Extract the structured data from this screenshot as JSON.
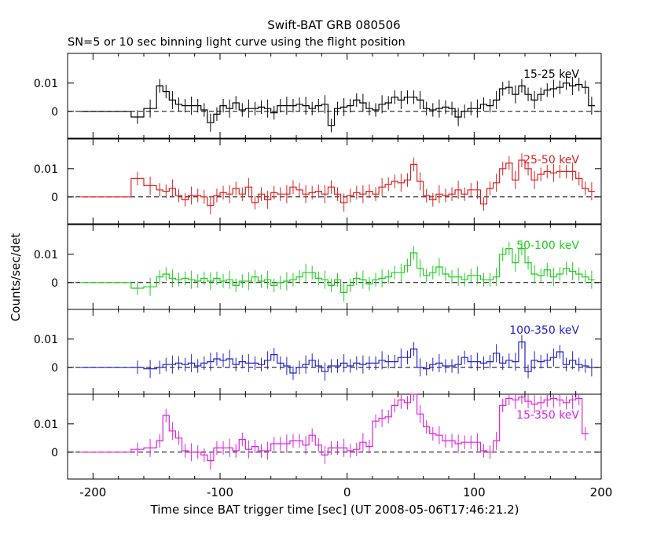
{
  "title": "Swift-BAT GRB 080506",
  "subtitle": "SN=5 or 10 sec binning light curve using the flight position",
  "xlabel": "Time since BAT trigger time [sec] (UT 2008-05-06T17:46:21.2)",
  "ylabel": "Counts/sec/det",
  "chart_data": {
    "type": "line",
    "title": "Swift-BAT GRB 080506",
    "subtitle": "SN=5 or 10 sec binning light curve using the flight position",
    "xlabel": "Time since BAT trigger time [sec] (UT 2008-05-06T17:46:21.2)",
    "ylabel": "Counts/sec/det",
    "xlim": [
      -220,
      200
    ],
    "ylim": [
      -0.0095,
      0.0205
    ],
    "x_ticks": [
      -200,
      -100,
      0,
      100,
      200
    ],
    "y_ticks": [
      0,
      0.01
    ],
    "y_tick_labels": [
      "0",
      "0.01"
    ],
    "grid": false,
    "baseline": 0,
    "x_edges": [
      -210,
      -190,
      -170,
      -160,
      -150,
      -145,
      -140,
      -135,
      -130,
      -125,
      -120,
      -115,
      -110,
      -105,
      -100,
      -95,
      -90,
      -85,
      -80,
      -75,
      -70,
      -65,
      -60,
      -55,
      -50,
      -45,
      -40,
      -35,
      -30,
      -25,
      -20,
      -15,
      -10,
      -5,
      0,
      5,
      10,
      15,
      20,
      25,
      30,
      35,
      40,
      45,
      50,
      55,
      60,
      65,
      70,
      75,
      80,
      85,
      90,
      95,
      100,
      105,
      110,
      115,
      120,
      125,
      130,
      135,
      140,
      145,
      150,
      155,
      160,
      165,
      170,
      175,
      180,
      185,
      190,
      195
    ],
    "series": [
      {
        "name": "15-25 keV",
        "color": "#000000",
        "values": [
          0,
          0,
          -0.002,
          0.001,
          0.009,
          0.007,
          0.004,
          0.0025,
          0.002,
          0.002,
          0.002,
          0.0005,
          -0.004,
          -0.001,
          0.002,
          0.001,
          0.003,
          0.0005,
          0.001,
          0.001,
          0.0015,
          0.001,
          -0.0005,
          0.002,
          0.002,
          0.002,
          0.0025,
          0.002,
          0.001,
          0.002,
          0.0025,
          -0.005,
          0.001,
          0.0015,
          0.002,
          0.004,
          0.003,
          0.001,
          0.0005,
          0.0025,
          0.003,
          0.005,
          0.004,
          0.005,
          0.005,
          0.004,
          0.001,
          0.0005,
          0.001,
          0.0015,
          0.001,
          -0.002,
          0,
          0.001,
          0.001,
          0.0025,
          0.002,
          0.004,
          0.008,
          0.0085,
          0.006,
          0.009,
          0.006,
          0.004,
          0.006,
          0.0075,
          0.008,
          0.0085,
          0.01,
          0.009,
          0.0095,
          0.0085,
          0.002
        ]
      },
      {
        "name": "25-50 keV",
        "color": "#dd2020",
        "values": [
          0,
          0,
          0.0065,
          0.004,
          0.0025,
          0.002,
          0.003,
          0.0005,
          -0.001,
          0.0005,
          0.0005,
          0,
          -0.003,
          0.0005,
          0.0015,
          0.001,
          0.003,
          0.001,
          0.0035,
          -0.002,
          0.001,
          -0.001,
          0.0015,
          0.001,
          0.001,
          0.0035,
          0.0025,
          0.001,
          0.0015,
          0.002,
          0.001,
          0.0035,
          0.001,
          -0.002,
          0.0005,
          0.0015,
          0.001,
          0.002,
          0.001,
          0.0035,
          0.0045,
          0.0055,
          0.005,
          0.006,
          0.0115,
          0.0055,
          0.0005,
          -0.001,
          0.001,
          0.0005,
          0.001,
          0.0025,
          0.001,
          0.0025,
          0.0025,
          -0.0025,
          0.003,
          0.005,
          0.01,
          0.012,
          0.006,
          0.013,
          0.01,
          0.006,
          0.008,
          0.009,
          0.0085,
          0.009,
          0.009,
          0.009,
          0.0065,
          0.003,
          0.002
        ]
      },
      {
        "name": "50-100 keV",
        "color": "#22cc22",
        "values": [
          0,
          0,
          -0.002,
          -0.0015,
          0.002,
          0.003,
          0.0015,
          0.001,
          0.0015,
          0.001,
          0.0005,
          0.0015,
          0.0005,
          0.0015,
          0.0005,
          0.001,
          -0.001,
          0.0005,
          0.0005,
          0.002,
          0.0005,
          0.001,
          -0.001,
          0,
          0.0005,
          0.001,
          0.002,
          0.0035,
          0.0035,
          0.0015,
          0.001,
          -0.001,
          0.001,
          -0.0035,
          -0.001,
          0.0015,
          0.001,
          -0.0005,
          0.001,
          0.0015,
          0.002,
          0.0035,
          0.0035,
          0.006,
          0.0105,
          0.005,
          0.0025,
          0.0035,
          0.0055,
          0.003,
          0.002,
          0.002,
          0.001,
          0.0025,
          0.0025,
          0.001,
          0.001,
          0.002,
          0.01,
          0.012,
          0.007,
          0.012,
          0.007,
          0.003,
          0.0025,
          0.0045,
          0.002,
          0.003,
          0.005,
          0.004,
          0.003,
          0.002,
          0.001
        ]
      },
      {
        "name": "100-350 keV",
        "color": "#2222cc",
        "values": [
          0,
          0,
          0,
          -0.0005,
          0,
          0.001,
          0.001,
          0.0015,
          0.001,
          0.0015,
          0.0005,
          0.0015,
          0.002,
          0.003,
          0.0025,
          0.003,
          0.001,
          0.002,
          0.0015,
          0.0015,
          0.001,
          0.0025,
          0.0045,
          0.0015,
          0.0005,
          -0.002,
          0,
          0.001,
          0.0025,
          0.0005,
          -0.0015,
          0.0005,
          0.0005,
          0.0015,
          0.0005,
          0.0015,
          0.001,
          0.0015,
          0.0015,
          0.0025,
          0.002,
          0.002,
          0.0035,
          0.0035,
          0.0065,
          0,
          -0.0005,
          0.001,
          0.0015,
          0.0005,
          0.0005,
          0.001,
          0.0035,
          0.002,
          0.002,
          0.0015,
          0.002,
          0.005,
          0.0015,
          0.0025,
          0.002,
          0.009,
          -0.0015,
          0.0025,
          0.002,
          0.0025,
          0.0035,
          0.0055,
          0.001,
          0.0025,
          0.001,
          0.0005,
          0
        ]
      },
      {
        "name": "15-350 keV",
        "color": "#dd22dd",
        "values": [
          0,
          0,
          0.001,
          0.0015,
          0.004,
          0.013,
          0.0075,
          0.005,
          0.0005,
          0,
          0,
          -0.001,
          -0.003,
          0.0015,
          0.0015,
          0.0015,
          0.0005,
          0.0045,
          0.001,
          0.002,
          0.0005,
          0.0005,
          0.003,
          0.003,
          0.003,
          0.004,
          0.004,
          0.0025,
          0.006,
          0.0025,
          -0.001,
          0.0015,
          0.0015,
          0.0015,
          0.0005,
          0.001,
          0.0035,
          0.002,
          0.011,
          0.012,
          0.0125,
          0.0165,
          0.0185,
          0.0175,
          0.0205,
          0.0135,
          0.009,
          0.0065,
          0.006,
          0.004,
          0.004,
          0.003,
          0.0035,
          0.0035,
          0.0035,
          0.0005,
          0,
          0.004,
          0.0165,
          0.019,
          0.0185,
          0.0195,
          0.018,
          0.017,
          0.0175,
          0.0185,
          0.019,
          0.0185,
          0.0175,
          0.0185,
          0.019,
          0.0065
        ]
      }
    ]
  }
}
